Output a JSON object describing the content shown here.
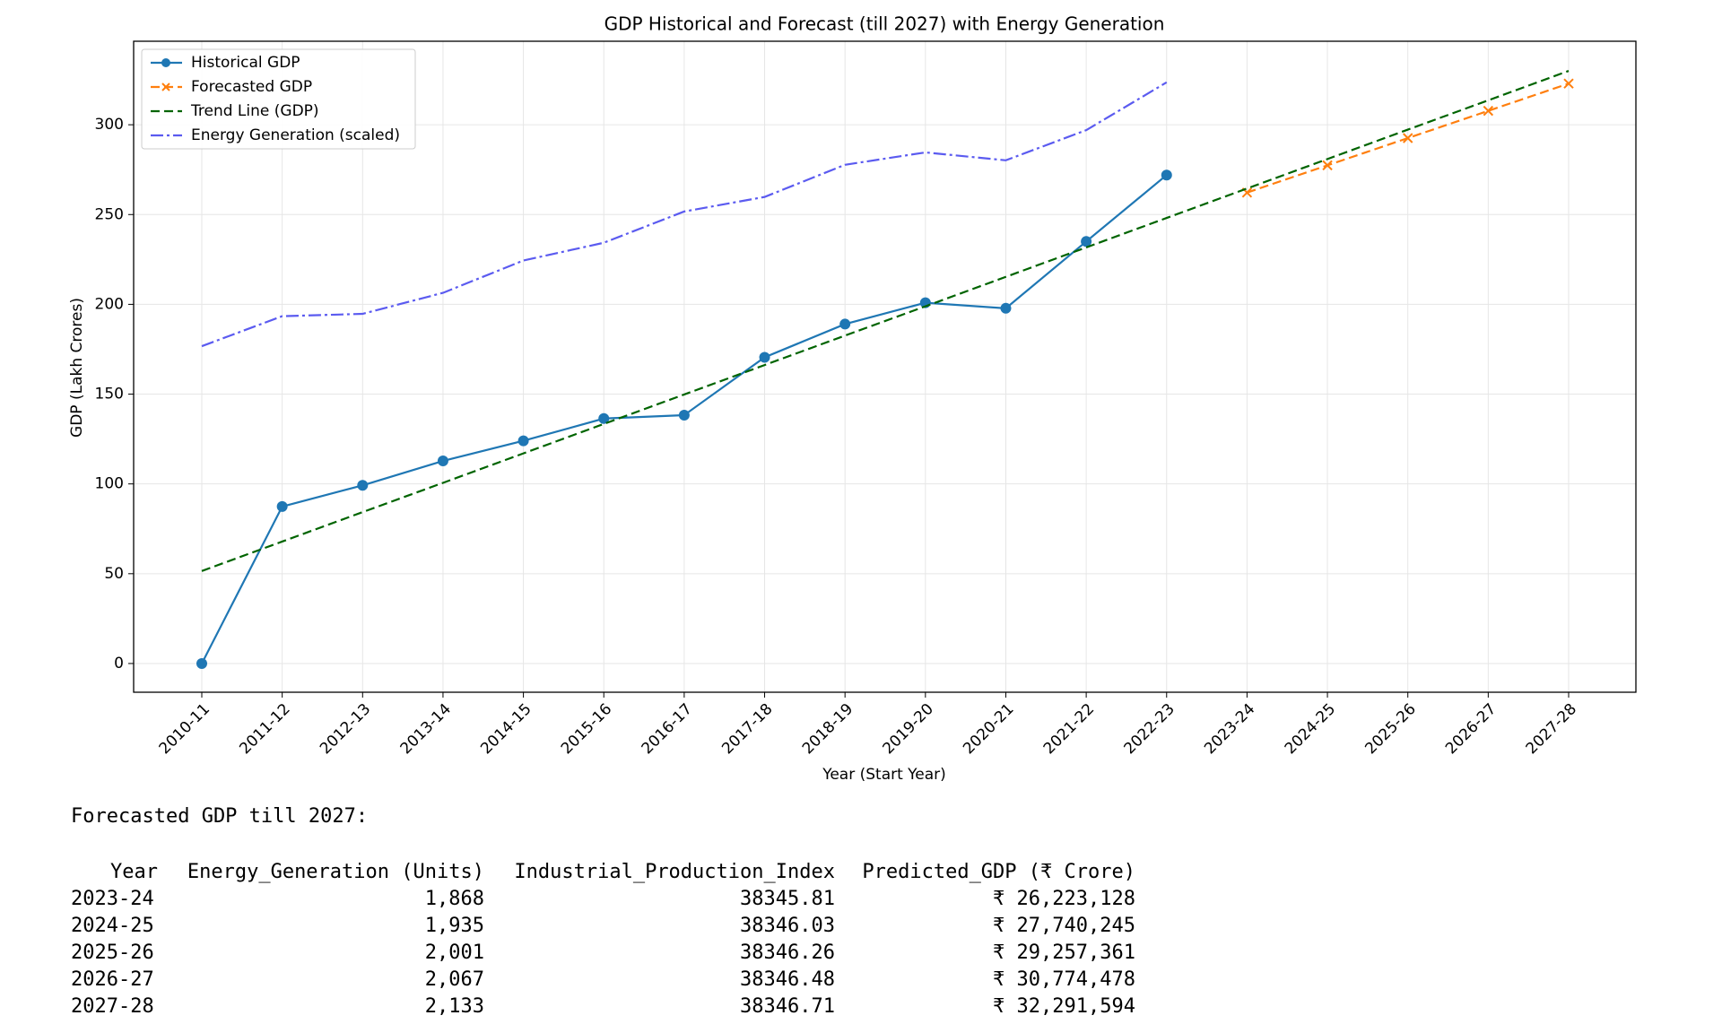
{
  "chart_data": {
    "type": "line",
    "title": "GDP Historical and Forecast (till 2027) with Energy Generation",
    "xlabel": "Year (Start Year)",
    "ylabel": "GDP (Lakh Crores)",
    "categories": [
      "2010-11",
      "2011-12",
      "2012-13",
      "2013-14",
      "2014-15",
      "2015-16",
      "2016-17",
      "2017-18",
      "2018-19",
      "2019-20",
      "2020-21",
      "2021-22",
      "2022-23",
      "2023-24",
      "2024-25",
      "2025-26",
      "2026-27",
      "2027-28"
    ],
    "series": [
      {
        "name": "Historical GDP",
        "color": "#1f77b4",
        "linestyle": "solid",
        "marker": "o",
        "values": [
          0,
          87.4,
          99.2,
          112.8,
          124,
          136.4,
          138.3,
          170.5,
          189,
          200.9,
          197.8,
          235,
          272,
          null,
          null,
          null,
          null,
          null
        ]
      },
      {
        "name": "Forecasted GDP",
        "color": "#ff7f0e",
        "linestyle": "dashed",
        "marker": "x",
        "values": [
          null,
          null,
          null,
          null,
          null,
          null,
          null,
          null,
          null,
          null,
          null,
          null,
          null,
          262.23,
          277.4,
          292.57,
          307.74,
          322.92
        ]
      },
      {
        "name": "Trend Line (GDP)",
        "color": "#006400",
        "linestyle": "dashed",
        "marker": null,
        "values": [
          51.5,
          67.9,
          84.3,
          100.6,
          117.0,
          133.4,
          149.8,
          166.2,
          182.6,
          198.9,
          215.3,
          231.7,
          248.1,
          264.5,
          280.9,
          297.3,
          313.6,
          330.0
        ]
      },
      {
        "name": "Energy Generation (scaled)",
        "color": "#5b5bf0",
        "linestyle": "dashdot",
        "marker": null,
        "values": [
          176.7,
          193.4,
          194.7,
          206.4,
          224.4,
          234.3,
          251.7,
          259.8,
          277.7,
          284.6,
          280.2,
          297,
          323.6,
          null,
          null,
          null,
          null,
          null
        ]
      }
    ],
    "ylim": [
      -16,
      346.5
    ],
    "yticks": [
      0,
      50,
      100,
      150,
      200,
      250,
      300
    ],
    "grid": true,
    "legend": "upper left"
  },
  "table": {
    "title": "Forecasted GDP till 2027:",
    "columns": [
      "Year",
      "Energy_Generation (Units)",
      "Industrial_Production_Index",
      "Predicted_GDP (₹ Crore)"
    ],
    "rows": [
      [
        "2023-24",
        "1,868",
        "38345.81",
        "₹ 26,223,128"
      ],
      [
        "2024-25",
        "1,935",
        "38346.03",
        "₹ 27,740,245"
      ],
      [
        "2025-26",
        "2,001",
        "38346.26",
        "₹ 29,257,361"
      ],
      [
        "2026-27",
        "2,067",
        "38346.48",
        "₹ 30,774,478"
      ],
      [
        "2027-28",
        "2,133",
        "38346.71",
        "₹ 32,291,594"
      ]
    ]
  }
}
